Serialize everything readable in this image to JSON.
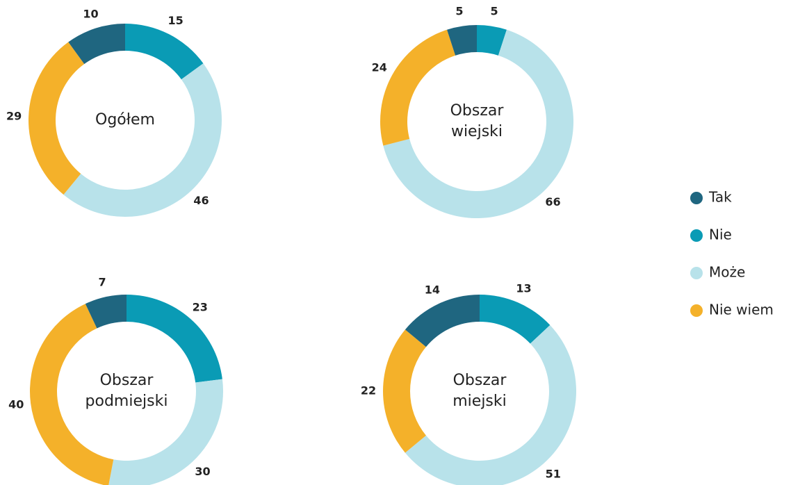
{
  "chart_data": [
    {
      "type": "pie",
      "title": "Ogółem",
      "values": [
        10,
        15,
        46,
        29
      ]
    },
    {
      "type": "pie",
      "title": "Obszar wiejski",
      "values": [
        5,
        5,
        66,
        24
      ]
    },
    {
      "type": "pie",
      "title": "Obszar podmiejski",
      "values": [
        7,
        23,
        30,
        40
      ]
    },
    {
      "type": "pie",
      "title": "Obszar miejski",
      "values": [
        14,
        13,
        51,
        22
      ]
    }
  ],
  "legend": {
    "categories": [
      "Tak",
      "Nie",
      "Może",
      "Nie wiem"
    ],
    "colors": [
      "#1f6680",
      "#0a9bb5",
      "#b8e2ea",
      "#f4b12a"
    ]
  }
}
